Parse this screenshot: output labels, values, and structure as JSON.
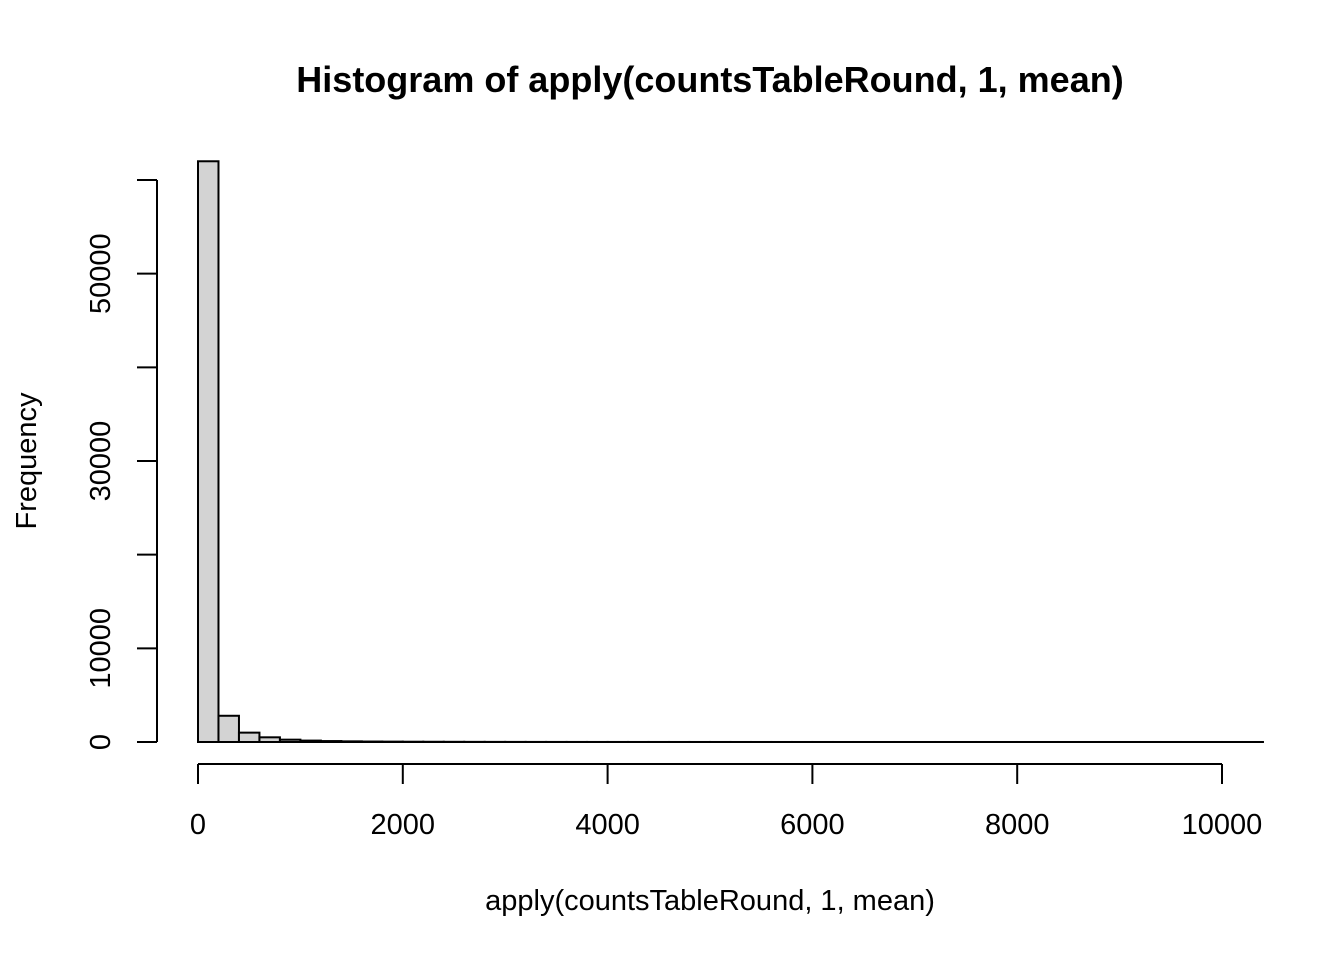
{
  "chart_data": {
    "type": "bar",
    "title": "Histogram of apply(countsTableRound, 1, mean)",
    "xlabel": "apply(countsTableRound, 1, mean)",
    "ylabel": "Frequency",
    "bin_width": 200,
    "bin_start": 0,
    "bin_end": 10400,
    "values": [
      62000,
      2800,
      1000,
      500,
      250,
      150,
      100,
      70,
      50,
      40,
      30,
      25,
      20,
      15,
      12,
      10,
      8,
      7,
      6,
      5,
      5,
      4,
      4,
      3,
      3,
      3,
      2,
      2,
      2,
      2,
      2,
      1,
      1,
      1,
      1,
      1,
      1,
      1,
      1,
      1,
      1,
      1,
      1,
      1,
      1,
      1,
      1,
      1,
      1,
      1,
      1,
      1
    ],
    "xlim": [
      0,
      10400
    ],
    "ylim": [
      0,
      60000
    ],
    "x_ticks": [
      0,
      2000,
      4000,
      6000,
      8000,
      10000
    ],
    "x_tick_labels": [
      "0",
      "2000",
      "4000",
      "6000",
      "8000",
      "10000"
    ],
    "y_ticks": [
      0,
      10000,
      20000,
      30000,
      40000,
      50000,
      60000
    ],
    "y_tick_labels": [
      "0",
      "10000",
      "",
      "30000",
      "",
      "50000",
      ""
    ],
    "bar_fill": "#d3d3d3",
    "bar_stroke": "#000000",
    "grid": false,
    "legend": "none"
  }
}
